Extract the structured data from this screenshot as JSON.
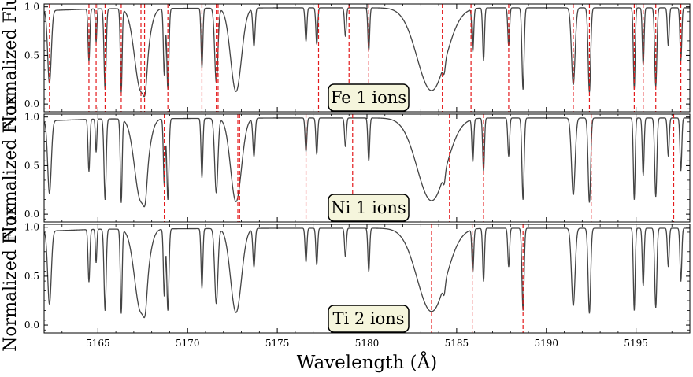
{
  "chart_data": [
    {
      "type": "line",
      "ion_label": "Fe 1 ions",
      "ylabel": "Normalized Flux",
      "xlim": [
        5162.0,
        5198.0
      ],
      "ylim": [
        -0.08,
        1.03
      ],
      "yticks": [
        0.0,
        0.5,
        1.0
      ],
      "ytick_labels": [
        "0.0",
        "0.5",
        "1.0"
      ],
      "series_color": "#444444",
      "line_color": "#e41a1c",
      "line_positions": [
        5162.3,
        5164.5,
        5164.9,
        5165.4,
        5166.3,
        5167.4,
        5167.6,
        5168.9,
        5170.8,
        5171.6,
        5171.7,
        5177.3,
        5179.0,
        5180.1,
        5184.2,
        5185.8,
        5187.9,
        5191.5,
        5192.4,
        5194.9,
        5195.4,
        5196.1,
        5197.5
      ]
    },
    {
      "type": "line",
      "ion_label": "Ni 1 ions",
      "ylabel": "Normalized Flux",
      "xlim": [
        5162.0,
        5198.0
      ],
      "ylim": [
        -0.08,
        1.03
      ],
      "yticks": [
        0.0,
        0.5,
        1.0
      ],
      "ytick_labels": [
        "0.0",
        "0.5",
        "1.0"
      ],
      "series_color": "#444444",
      "line_color": "#e41a1c",
      "line_positions": [
        5168.7,
        5172.8,
        5172.9,
        5176.6,
        5179.2,
        5184.6,
        5186.5,
        5192.5,
        5197.1
      ]
    },
    {
      "type": "line",
      "ion_label": "Ti 2 ions",
      "ylabel": "Normalized Flux",
      "xlabel": "Wavelength (Å)",
      "xlim": [
        5162.0,
        5198.0
      ],
      "ylim": [
        -0.08,
        1.03
      ],
      "yticks": [
        0.0,
        0.5,
        1.0
      ],
      "ytick_labels": [
        "0.0",
        "0.5",
        "1.0"
      ],
      "xticks": [
        5165,
        5170,
        5175,
        5180,
        5185,
        5190,
        5195
      ],
      "xtick_labels": [
        "5165",
        "5170",
        "5175",
        "5180",
        "5185",
        "5190",
        "5195"
      ],
      "series_color": "#444444",
      "line_color": "#e41a1c",
      "line_positions": [
        5183.6,
        5185.9,
        5188.7
      ]
    }
  ],
  "spectrum": {
    "continuum": [
      [
        5162.0,
        0.96
      ],
      [
        5165.0,
        0.98
      ],
      [
        5175.0,
        0.99
      ],
      [
        5190.0,
        0.99
      ],
      [
        5198.0,
        0.99
      ]
    ],
    "absorption_lines": [
      {
        "center": 5162.3,
        "depth": 0.78,
        "width": 0.1
      },
      {
        "center": 5164.5,
        "depth": 0.55,
        "width": 0.05
      },
      {
        "center": 5164.9,
        "depth": 0.35,
        "width": 0.04
      },
      {
        "center": 5165.4,
        "depth": 0.85,
        "width": 0.06
      },
      {
        "center": 5166.3,
        "depth": 0.88,
        "width": 0.05
      },
      {
        "center": 5167.4,
        "depth": 0.86,
        "width": 0.35
      },
      {
        "center": 5167.6,
        "depth": 0.7,
        "width": 0.1
      },
      {
        "center": 5168.7,
        "depth": 0.7,
        "width": 0.05
      },
      {
        "center": 5168.9,
        "depth": 0.85,
        "width": 0.06
      },
      {
        "center": 5170.8,
        "depth": 0.62,
        "width": 0.05
      },
      {
        "center": 5171.6,
        "depth": 0.78,
        "width": 0.09
      },
      {
        "center": 5172.7,
        "depth": 0.87,
        "width": 0.3
      },
      {
        "center": 5173.7,
        "depth": 0.4,
        "width": 0.06
      },
      {
        "center": 5176.6,
        "depth": 0.35,
        "width": 0.05
      },
      {
        "center": 5177.2,
        "depth": 0.38,
        "width": 0.05
      },
      {
        "center": 5178.8,
        "depth": 0.3,
        "width": 0.05
      },
      {
        "center": 5180.1,
        "depth": 0.45,
        "width": 0.05
      },
      {
        "center": 5183.6,
        "depth": 0.86,
        "width": 0.8
      },
      {
        "center": 5184.3,
        "depth": 0.25,
        "width": 0.06
      },
      {
        "center": 5185.9,
        "depth": 0.45,
        "width": 0.05
      },
      {
        "center": 5186.5,
        "depth": 0.55,
        "width": 0.05
      },
      {
        "center": 5187.9,
        "depth": 0.4,
        "width": 0.05
      },
      {
        "center": 5188.7,
        "depth": 0.85,
        "width": 0.06
      },
      {
        "center": 5191.5,
        "depth": 0.8,
        "width": 0.1
      },
      {
        "center": 5192.4,
        "depth": 0.88,
        "width": 0.07
      },
      {
        "center": 5194.9,
        "depth": 0.85,
        "width": 0.05
      },
      {
        "center": 5195.4,
        "depth": 0.6,
        "width": 0.05
      },
      {
        "center": 5196.1,
        "depth": 0.82,
        "width": 0.06
      },
      {
        "center": 5196.8,
        "depth": 0.4,
        "width": 0.05
      },
      {
        "center": 5197.5,
        "depth": 0.55,
        "width": 0.05
      }
    ]
  }
}
